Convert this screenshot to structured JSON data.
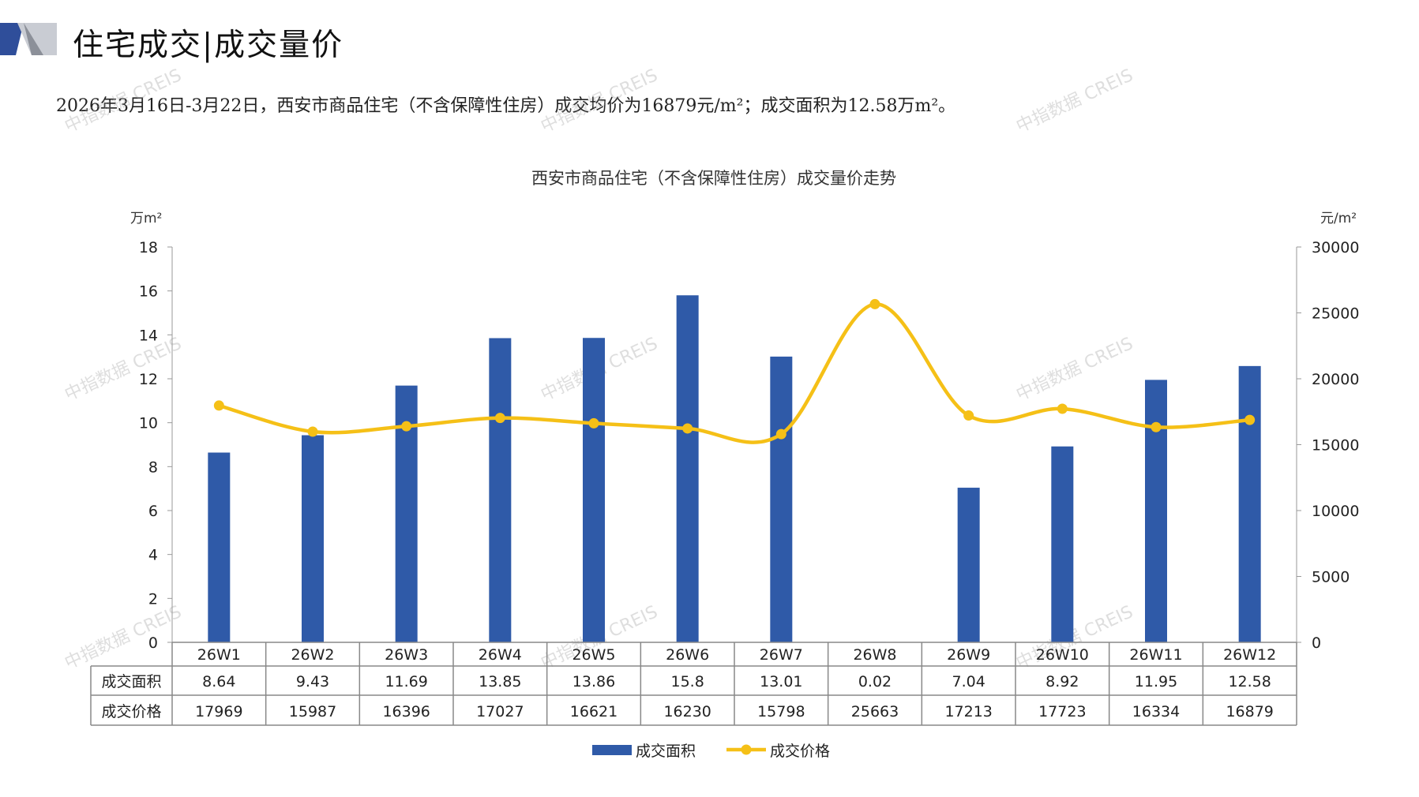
{
  "header": {
    "title": "住宅成交|成交量价",
    "summary": "2026年3月16日-3月22日，西安市商品住宅（不含保障性住房）成交均价为16879元/m²；成交面积为12.58万m²。"
  },
  "watermark": "中指数据 CREIS",
  "colors": {
    "bar": "#2F5AA8",
    "line": "#F5C017",
    "axis": "#999999",
    "grid_table": "#888888"
  },
  "chart_data": {
    "type": "bar+line",
    "title": "西安市商品住宅（不含保障性住房）成交量价走势",
    "categories": [
      "26W1",
      "26W2",
      "26W3",
      "26W4",
      "26W5",
      "26W6",
      "26W7",
      "26W8",
      "26W9",
      "26W10",
      "26W11",
      "26W12"
    ],
    "series": [
      {
        "name": "成交面积",
        "type": "bar",
        "axis": "left",
        "values": [
          8.64,
          9.43,
          11.69,
          13.85,
          13.86,
          15.8,
          13.01,
          0.02,
          7.04,
          8.92,
          11.95,
          12.58
        ]
      },
      {
        "name": "成交价格",
        "type": "line",
        "axis": "right",
        "smooth": true,
        "values": [
          17969,
          15987,
          16396,
          17027,
          16621,
          16230,
          15798,
          25663,
          17213,
          17723,
          16334,
          16879
        ]
      }
    ],
    "y_left": {
      "unit": "万m²",
      "range": [
        0,
        18
      ],
      "ticks": [
        "0",
        "2",
        "4",
        "6",
        "8",
        "10",
        "12",
        "14",
        "16",
        "18"
      ]
    },
    "y_right": {
      "unit": "元/m²",
      "range": [
        0,
        30000
      ],
      "ticks": [
        "0",
        "5000",
        "10000",
        "15000",
        "20000",
        "25000",
        "30000"
      ]
    },
    "grid": false,
    "legend": "bottom",
    "data_table": true
  }
}
